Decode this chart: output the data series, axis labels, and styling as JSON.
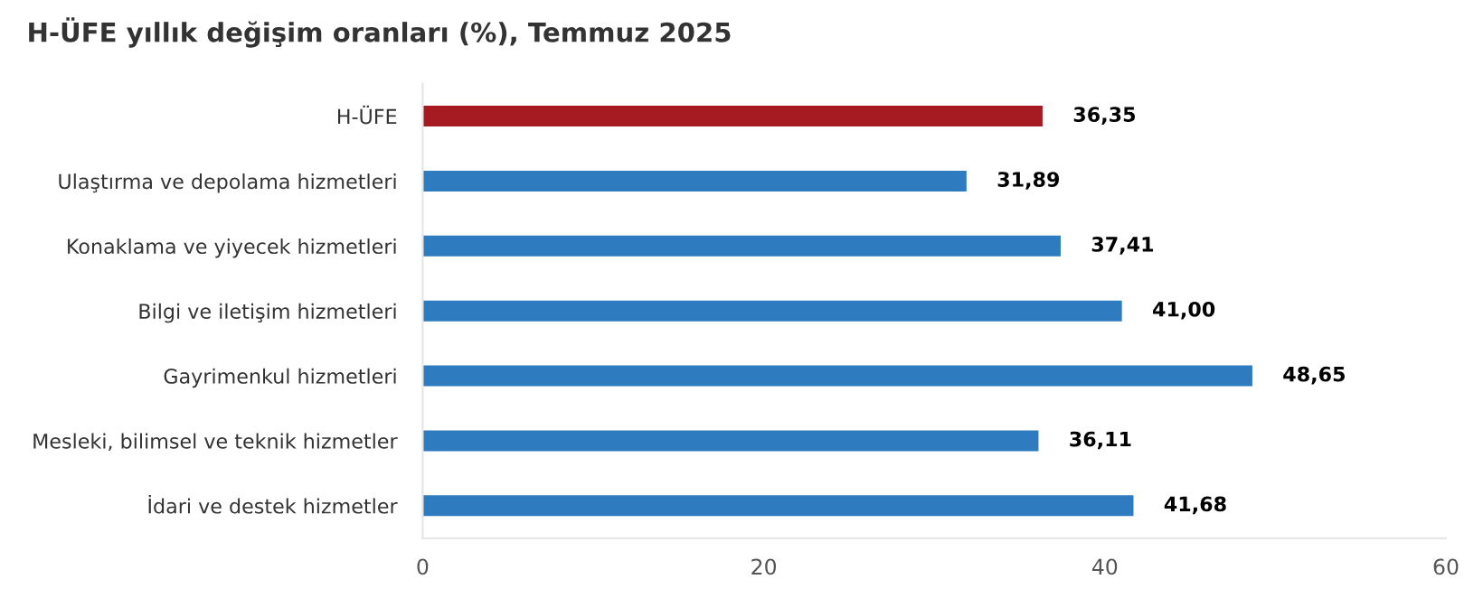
{
  "chart_data": {
    "type": "bar",
    "orientation": "horizontal",
    "title": "H-ÜFE yıllık değişim oranları (%), Temmuz 2025",
    "categories": [
      "H-ÜFE",
      "Ulaştırma ve depolama hizmetleri",
      "Konaklama ve yiyecek hizmetleri",
      "Bilgi ve iletişim hizmetleri",
      "Gayrimenkul hizmetleri",
      "Mesleki, bilimsel ve teknik hizmetler",
      "İdari ve destek hizmetler"
    ],
    "values": [
      36.35,
      31.89,
      37.41,
      41.0,
      48.65,
      36.11,
      41.68
    ],
    "value_labels": [
      "36,35",
      "31,89",
      "37,41",
      "41,00",
      "48,65",
      "36,11",
      "41,68"
    ],
    "colors": [
      "#a61b22",
      "#2e7bbf",
      "#2e7bbf",
      "#2e7bbf",
      "#2e7bbf",
      "#2e7bbf",
      "#2e7bbf"
    ],
    "xlim": [
      0,
      60
    ],
    "xticks": [
      0,
      20,
      40,
      60
    ],
    "grid": false
  }
}
